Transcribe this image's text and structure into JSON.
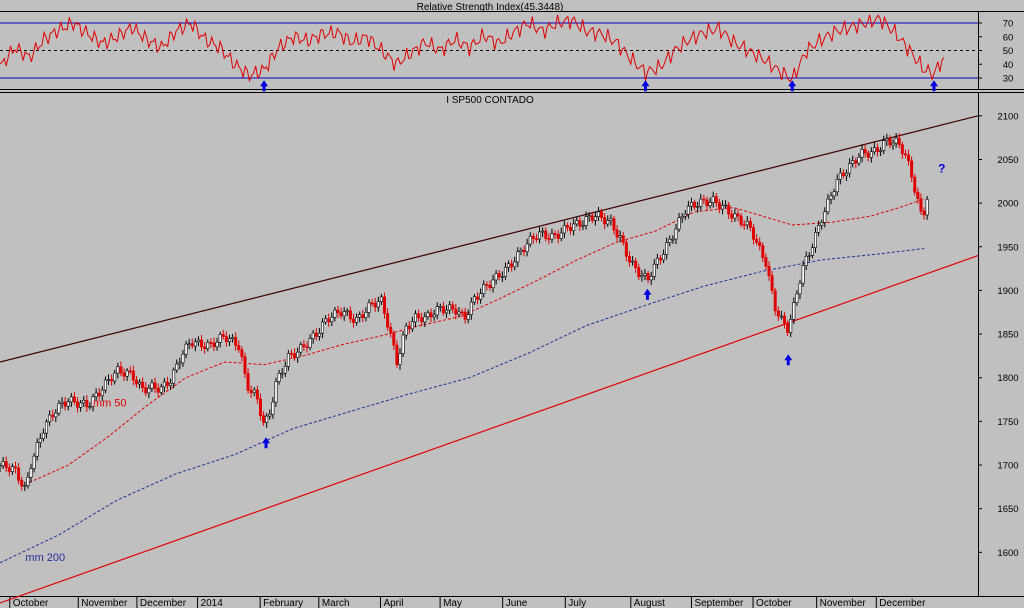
{
  "colors": {
    "background": "#c0c0c0",
    "up_candle": "#000000",
    "down_candle": "#e00000",
    "rsi_line": "#e00000",
    "rsi_band": "#0000c0",
    "mm50": "#e00000",
    "mm200": "#2a2a9a",
    "resistance": "#400000",
    "support": "#e00000",
    "arrow": "#0000e0"
  },
  "chart_data": [
    {
      "type": "line",
      "title": "Relative Strength Index(45.3448)",
      "ylim": [
        22,
        78
      ],
      "yticks": [
        30,
        40,
        50,
        60,
        70
      ],
      "bands": [
        30,
        70
      ],
      "midline": 50,
      "x_range": [
        0,
        100
      ],
      "series": [
        {
          "values": [
            [
              0,
              38
            ],
            [
              1.5,
              52
            ],
            [
              3,
              45
            ],
            [
              4.5,
              58
            ],
            [
              6,
              65
            ],
            [
              7.5,
              70
            ],
            [
              9,
              62
            ],
            [
              10.5,
              55
            ],
            [
              12,
              60
            ],
            [
              13.5,
              67
            ],
            [
              15,
              58
            ],
            [
              16.5,
              52
            ],
            [
              18,
              64
            ],
            [
              19.5,
              70
            ],
            [
              21,
              58
            ],
            [
              22.5,
              52
            ],
            [
              24,
              40
            ],
            [
              25.5,
              32
            ],
            [
              27,
              36
            ],
            [
              28.5,
              52
            ],
            [
              30,
              60
            ],
            [
              31.5,
              57
            ],
            [
              33,
              62
            ],
            [
              34.5,
              63
            ],
            [
              36,
              56
            ],
            [
              37.5,
              60
            ],
            [
              39,
              50
            ],
            [
              40.5,
              40
            ],
            [
              42,
              48
            ],
            [
              43.5,
              56
            ],
            [
              45,
              50
            ],
            [
              46.5,
              58
            ],
            [
              48,
              52
            ],
            [
              49.5,
              61
            ],
            [
              51,
              55
            ],
            [
              52.5,
              63
            ],
            [
              54,
              70
            ],
            [
              55.5,
              64
            ],
            [
              57,
              70
            ],
            [
              58.5,
              72
            ],
            [
              60,
              64
            ],
            [
              61.5,
              62
            ],
            [
              63,
              56
            ],
            [
              64.5,
              44
            ],
            [
              66,
              34
            ],
            [
              67.5,
              38
            ],
            [
              69,
              50
            ],
            [
              70.5,
              58
            ],
            [
              72,
              63
            ],
            [
              73.5,
              66
            ],
            [
              75,
              56
            ],
            [
              76.5,
              50
            ],
            [
              78,
              44
            ],
            [
              79.5,
              36
            ],
            [
              81,
              29
            ],
            [
              82.5,
              50
            ],
            [
              84,
              58
            ],
            [
              85.5,
              64
            ],
            [
              87,
              67
            ],
            [
              88.5,
              70
            ],
            [
              90,
              73
            ],
            [
              91.5,
              63
            ],
            [
              93,
              50
            ],
            [
              94.5,
              36
            ],
            [
              95.5,
              33
            ],
            [
              96.5,
              45
            ]
          ]
        }
      ],
      "annotations": [
        {
          "label": "arrow",
          "x": 27,
          "y": 24
        },
        {
          "label": "arrow",
          "x": 66,
          "y": 24
        },
        {
          "label": "arrow",
          "x": 81,
          "y": 24
        },
        {
          "label": "arrow",
          "x": 95.5,
          "y": 24
        }
      ]
    },
    {
      "type": "candlestick",
      "title": "I SP500 CONTADO",
      "ylim": [
        1550,
        2125
      ],
      "yticks": [
        1600,
        1650,
        1700,
        1750,
        1800,
        1850,
        1900,
        1950,
        2000,
        2050,
        2100
      ],
      "x_range": [
        0,
        100
      ],
      "x_ticks": [
        {
          "label": "October",
          "x": 1
        },
        {
          "label": "November",
          "x": 8
        },
        {
          "label": "December",
          "x": 14
        },
        {
          "label": "2014",
          "x": 20.2
        },
        {
          "label": "February",
          "x": 26.6
        },
        {
          "label": "March",
          "x": 32.6
        },
        {
          "label": "April",
          "x": 38.9
        },
        {
          "label": "May",
          "x": 45
        },
        {
          "label": "June",
          "x": 51.4
        },
        {
          "label": "July",
          "x": 57.8
        },
        {
          "label": "August",
          "x": 64.5
        },
        {
          "label": "September",
          "x": 70.7
        },
        {
          "label": "October",
          "x": 77
        },
        {
          "label": "November",
          "x": 83.5
        },
        {
          "label": "December",
          "x": 89.6
        }
      ],
      "price_path": [
        [
          0,
          1698
        ],
        [
          1.5,
          1692
        ],
        [
          2.6,
          1672
        ],
        [
          3.2,
          1705
        ],
        [
          4.5,
          1745
        ],
        [
          5.8,
          1762
        ],
        [
          7,
          1772
        ],
        [
          9,
          1772
        ],
        [
          10.5,
          1788
        ],
        [
          12,
          1805
        ],
        [
          13.5,
          1805
        ],
        [
          14.5,
          1790
        ],
        [
          15.5,
          1790
        ],
        [
          16.5,
          1785
        ],
        [
          17.5,
          1795
        ],
        [
          18.5,
          1825
        ],
        [
          19.5,
          1845
        ],
        [
          20.5,
          1840
        ],
        [
          21.5,
          1835
        ],
        [
          23,
          1845
        ],
        [
          24.5,
          1838
        ],
        [
          25.2,
          1795
        ],
        [
          26.2,
          1780
        ],
        [
          27,
          1745
        ],
        [
          27.5,
          1752
        ],
        [
          28.2,
          1790
        ],
        [
          29.5,
          1825
        ],
        [
          31,
          1838
        ],
        [
          32.5,
          1850
        ],
        [
          33.5,
          1865
        ],
        [
          35,
          1878
        ],
        [
          36.5,
          1868
        ],
        [
          38,
          1882
        ],
        [
          39,
          1885
        ],
        [
          39.8,
          1855
        ],
        [
          40.6,
          1820
        ],
        [
          41.5,
          1860
        ],
        [
          42.6,
          1870
        ],
        [
          43.5,
          1865
        ],
        [
          45,
          1878
        ],
        [
          46.5,
          1882
        ],
        [
          47.5,
          1870
        ],
        [
          48.5,
          1888
        ],
        [
          50,
          1905
        ],
        [
          51,
          1918
        ],
        [
          52,
          1930
        ],
        [
          53.5,
          1948
        ],
        [
          55,
          1962
        ],
        [
          56.5,
          1962
        ],
        [
          58,
          1975
        ],
        [
          59.5,
          1975
        ],
        [
          61,
          1985
        ],
        [
          62.5,
          1980
        ],
        [
          63.5,
          1960
        ],
        [
          64.5,
          1930
        ],
        [
          65.5,
          1915
        ],
        [
          66.2,
          1910
        ],
        [
          67,
          1930
        ],
        [
          68.5,
          1960
        ],
        [
          70,
          1990
        ],
        [
          71.5,
          1998
        ],
        [
          73,
          2005
        ],
        [
          74,
          1998
        ],
        [
          75,
          1985
        ],
        [
          76,
          1975
        ],
        [
          76.8,
          1968
        ],
        [
          77.5,
          1950
        ],
        [
          78.3,
          1935
        ],
        [
          79.2,
          1885
        ],
        [
          80,
          1865
        ],
        [
          80.6,
          1855
        ],
        [
          81.2,
          1880
        ],
        [
          82,
          1920
        ],
        [
          83,
          1950
        ],
        [
          84,
          1985
        ],
        [
          85.5,
          2025
        ],
        [
          87,
          2040
        ],
        [
          88,
          2055
        ],
        [
          89.5,
          2062
        ],
        [
          90.5,
          2072
        ],
        [
          91.5,
          2070
        ],
        [
          92.5,
          2055
        ],
        [
          93.2,
          2030
        ],
        [
          93.8,
          2005
        ],
        [
          94.3,
          1982
        ],
        [
          94.8,
          2010
        ]
      ],
      "series": [
        {
          "name": "mm 50",
          "values": [
            [
              3,
              1680
            ],
            [
              7,
              1700
            ],
            [
              11,
              1732
            ],
            [
              15,
              1768
            ],
            [
              19,
              1800
            ],
            [
              23,
              1818
            ],
            [
              27,
              1815
            ],
            [
              31,
              1825
            ],
            [
              35,
              1838
            ],
            [
              39,
              1848
            ],
            [
              43,
              1860
            ],
            [
              47,
              1870
            ],
            [
              51,
              1890
            ],
            [
              55,
              1912
            ],
            [
              59,
              1935
            ],
            [
              63,
              1955
            ],
            [
              67,
              1968
            ],
            [
              71,
              1990
            ],
            [
              75,
              1995
            ],
            [
              78,
              1985
            ],
            [
              81,
              1975
            ],
            [
              85,
              1978
            ],
            [
              89,
              1985
            ],
            [
              92,
              1995
            ],
            [
              94.5,
              2005
            ]
          ]
        },
        {
          "name": "mm 200",
          "values": [
            [
              0,
              1588
            ],
            [
              6,
              1620
            ],
            [
              12,
              1660
            ],
            [
              18,
              1690
            ],
            [
              24,
              1712
            ],
            [
              30,
              1742
            ],
            [
              36,
              1762
            ],
            [
              42,
              1782
            ],
            [
              48,
              1800
            ],
            [
              54,
              1828
            ],
            [
              60,
              1860
            ],
            [
              66,
              1883
            ],
            [
              72,
              1905
            ],
            [
              78,
              1922
            ],
            [
              84,
              1935
            ],
            [
              90,
              1942
            ],
            [
              94.5,
              1948
            ]
          ]
        },
        {
          "name": "resistance",
          "values": [
            [
              0,
              1818
            ],
            [
              100,
              2100
            ]
          ]
        },
        {
          "name": "support",
          "values": [
            [
              0,
              1542
            ],
            [
              100,
              1940
            ]
          ]
        }
      ],
      "annotations": [
        {
          "label": "mm 50",
          "x": 9.5,
          "y": 1767
        },
        {
          "label": "mm 200",
          "x": 2.6,
          "y": 1590
        },
        {
          "label": "?",
          "x": 96.3,
          "y": 2035
        },
        {
          "label": "arrow",
          "x": 27.2,
          "y": 1725
        },
        {
          "label": "arrow",
          "x": 66.2,
          "y": 1895
        },
        {
          "label": "arrow",
          "x": 80.6,
          "y": 1820
        }
      ]
    }
  ]
}
